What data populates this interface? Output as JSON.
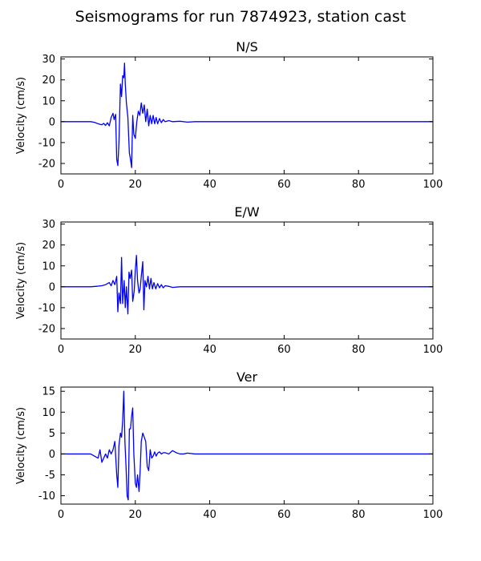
{
  "figure": {
    "title": "Seismograms for run 7874923, station cast"
  },
  "chart_data": [
    {
      "type": "line",
      "title": "N/S",
      "xlabel": "",
      "ylabel": "Velocity (cm/s)",
      "xlim": [
        0,
        100
      ],
      "ylim": [
        -25,
        31
      ],
      "xticks": [
        0,
        20,
        40,
        60,
        80,
        100
      ],
      "yticks": [
        -20,
        -10,
        0,
        10,
        20,
        30
      ],
      "grid": false,
      "series": [
        {
          "color": "#0000ff",
          "x": [
            0,
            5,
            8,
            9,
            10,
            11,
            11.5,
            12,
            12.5,
            13,
            13.5,
            14,
            14.3,
            14.7,
            15,
            15.3,
            15.6,
            16,
            16.3,
            16.6,
            16.9,
            17.1,
            17.3,
            17.6,
            18,
            18.4,
            18.7,
            19,
            19.3,
            19.6,
            20,
            20.4,
            20.8,
            21.2,
            21.6,
            22,
            22.4,
            22.8,
            23.2,
            23.6,
            24,
            24.4,
            24.8,
            25.2,
            25.6,
            26,
            26.5,
            27,
            27.5,
            28,
            29,
            30,
            32,
            34,
            36,
            40,
            50,
            60,
            80,
            100
          ],
          "y": [
            0,
            0,
            0,
            -0.3,
            -1,
            -1.5,
            -0.8,
            -1.8,
            -0.5,
            -2,
            2,
            4,
            1,
            3.5,
            -18,
            -21,
            -10,
            18,
            12,
            22,
            21,
            28,
            18,
            9,
            2,
            -15,
            -18,
            -22,
            3,
            -6,
            -8,
            0,
            5,
            3,
            9,
            4,
            8,
            0,
            6,
            -2,
            3,
            -1,
            3,
            -1,
            2,
            -1,
            1.5,
            -0.5,
            1,
            0,
            0.5,
            0,
            0.2,
            -0.2,
            0,
            0,
            0,
            0,
            0,
            0
          ]
        }
      ]
    },
    {
      "type": "line",
      "title": "E/W",
      "xlabel": "",
      "ylabel": "Velocity (cm/s)",
      "xlim": [
        0,
        100
      ],
      "ylim": [
        -25,
        31
      ],
      "xticks": [
        0,
        20,
        40,
        60,
        80,
        100
      ],
      "yticks": [
        -20,
        -10,
        0,
        10,
        20,
        30
      ],
      "grid": false,
      "series": [
        {
          "color": "#0000ff",
          "x": [
            0,
            8,
            10,
            11,
            12,
            13,
            13.5,
            14,
            14.5,
            15,
            15.3,
            15.6,
            16,
            16.3,
            16.6,
            17,
            17.3,
            17.6,
            18,
            18.3,
            18.6,
            19,
            19.3,
            19.7,
            20,
            20.3,
            20.6,
            21,
            21.3,
            21.6,
            22,
            22.3,
            22.6,
            23,
            23.4,
            23.8,
            24.2,
            24.6,
            25,
            25.5,
            26,
            26.5,
            27,
            27.5,
            28,
            29,
            30,
            32,
            35,
            40,
            60,
            80,
            100
          ],
          "y": [
            0,
            0,
            0.3,
            0.5,
            1,
            2,
            0.5,
            3,
            1,
            5,
            -12,
            -3,
            -8,
            14,
            -8,
            3,
            -10,
            0,
            -13,
            7,
            4,
            8,
            -7,
            -2,
            8,
            15,
            3,
            -3,
            -1,
            5,
            12,
            -11,
            3,
            0,
            5,
            -1,
            4,
            -1,
            2,
            -1,
            1.5,
            -0.5,
            1,
            -0.5,
            0.5,
            0.2,
            -0.3,
            0,
            0,
            0,
            0,
            0,
            0
          ]
        }
      ]
    },
    {
      "type": "line",
      "title": "Ver",
      "xlabel": "",
      "ylabel": "Velocity (cm/s)",
      "xlim": [
        0,
        100
      ],
      "ylim": [
        -12,
        16
      ],
      "xticks": [
        0,
        20,
        40,
        60,
        80,
        100
      ],
      "yticks": [
        -10,
        -5,
        0,
        5,
        10,
        15
      ],
      "grid": false,
      "series": [
        {
          "color": "#0000ff",
          "x": [
            0,
            5,
            8,
            9,
            10,
            10.5,
            11,
            11.5,
            12,
            12.5,
            13,
            13.5,
            14,
            14.5,
            15,
            15.3,
            15.6,
            16,
            16.3,
            16.6,
            16.9,
            17.2,
            17.5,
            17.8,
            18.1,
            18.4,
            18.7,
            19,
            19.3,
            19.6,
            20,
            20.3,
            20.6,
            21,
            21.3,
            21.6,
            22,
            22.4,
            22.8,
            23.2,
            23.6,
            24,
            24.4,
            24.8,
            25.2,
            25.6,
            26,
            26.5,
            27,
            27.5,
            28,
            29,
            30,
            31,
            32,
            33,
            34,
            36,
            40,
            60,
            80,
            100
          ],
          "y": [
            0,
            0,
            0,
            -0.5,
            -1,
            1,
            -2,
            -1,
            0,
            -1,
            1,
            0,
            1,
            3,
            -5,
            -8,
            2,
            5,
            4,
            8,
            15,
            3,
            -3,
            -10,
            -11,
            6,
            6,
            9,
            11,
            0,
            -7,
            -8,
            -5,
            -9,
            -4,
            3,
            5,
            4,
            3,
            -3,
            -4,
            1,
            -1,
            -0.5,
            0.5,
            -0.5,
            0.2,
            0.5,
            0,
            0.3,
            0.3,
            0,
            0.8,
            0.3,
            0,
            0,
            0.2,
            0,
            0,
            0,
            0,
            0
          ]
        }
      ]
    }
  ]
}
